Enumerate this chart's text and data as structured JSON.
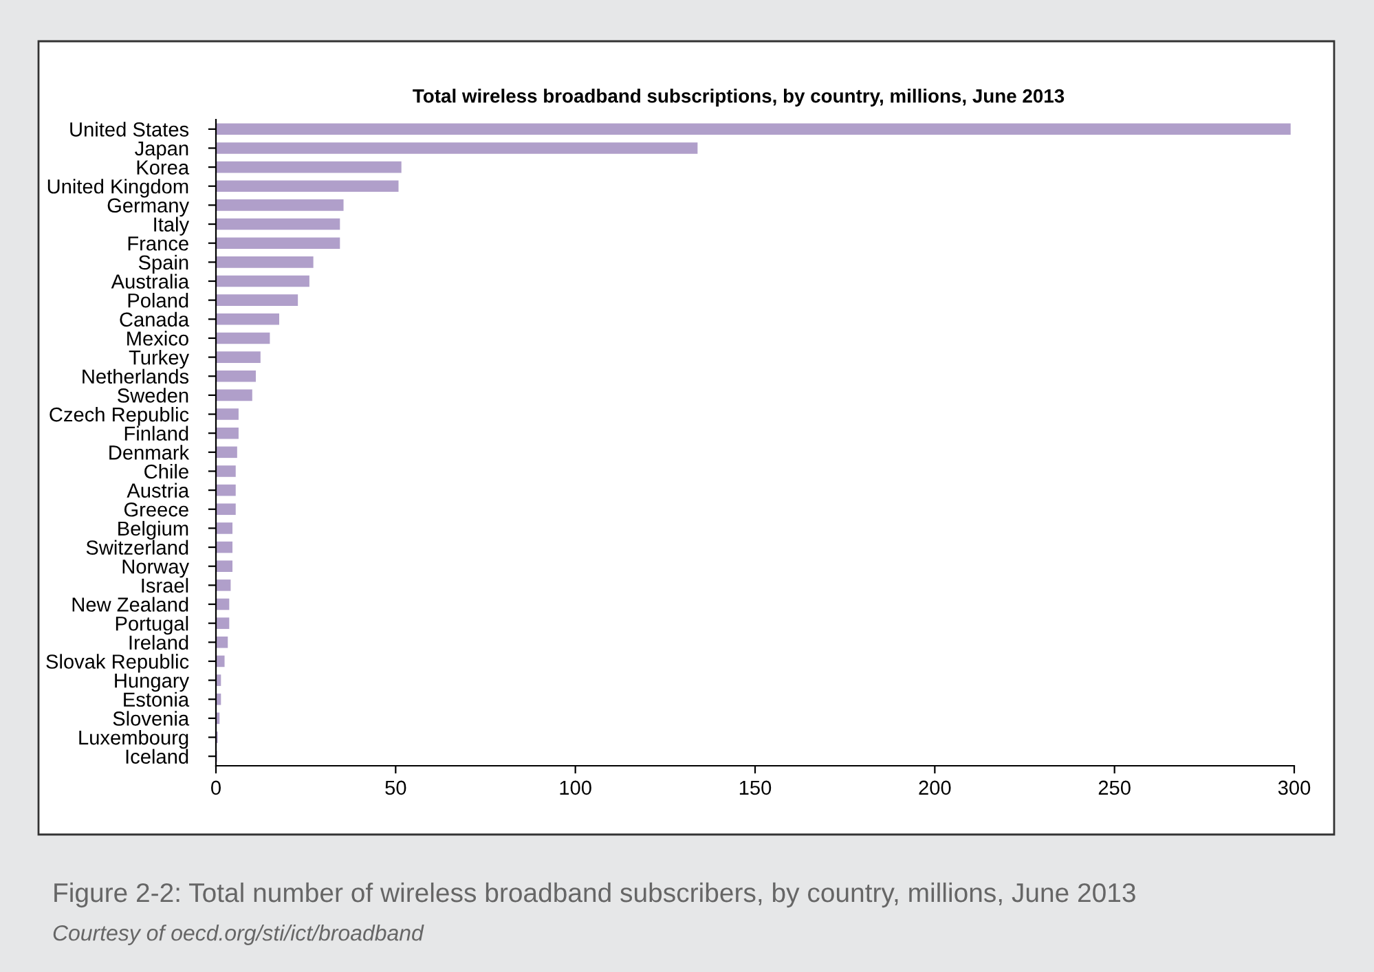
{
  "chart_data": {
    "type": "bar",
    "orientation": "horizontal",
    "title": "Total wireless broadband subscriptions, by country, millions, June 2013",
    "categories": [
      "United States",
      "Japan",
      "Korea",
      "United Kingdom",
      "Germany",
      "Italy",
      "France",
      "Spain",
      "Australia",
      "Poland",
      "Canada",
      "Mexico",
      "Turkey",
      "Netherlands",
      "Sweden",
      "Czech Republic",
      "Finland",
      "Denmark",
      "Chile",
      "Austria",
      "Greece",
      "Belgium",
      "Switzerland",
      "Norway",
      "Israel",
      "New Zealand",
      "Portugal",
      "Ireland",
      "Slovak Republic",
      "Hungary",
      "Estonia",
      "Slovenia",
      "Luxembourg",
      "Iceland"
    ],
    "values": [
      299,
      134,
      51.6,
      50.8,
      35.5,
      34.5,
      34.5,
      27.1,
      26.0,
      22.8,
      17.6,
      15.0,
      12.4,
      11.1,
      10.1,
      6.3,
      6.3,
      5.9,
      5.5,
      5.5,
      5.5,
      4.6,
      4.6,
      4.6,
      4.1,
      3.7,
      3.7,
      3.3,
      2.4,
      1.4,
      1.4,
      1.0,
      0.5,
      0.3
    ],
    "color": "#b09fca",
    "xlim": [
      0,
      300
    ],
    "xticks": [
      0,
      50,
      100,
      150,
      200,
      250,
      300
    ],
    "grid": false,
    "legend": false,
    "annotations": [
      "Figure 2-2: Total number of wireless broadband subscribers, by country, millions, June 2013",
      "Courtesy of oecd.org/sti/ict/broadband"
    ]
  }
}
